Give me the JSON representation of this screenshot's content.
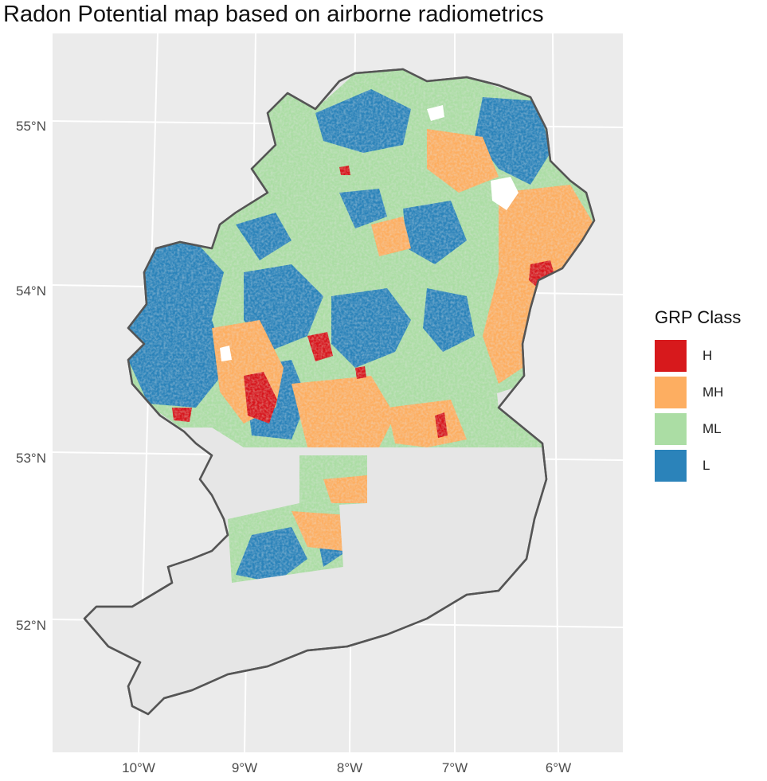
{
  "title": "Radon Potential map based on airborne radiometrics",
  "axes": {
    "y_ticks": [
      "55°N",
      "54°N",
      "53°N",
      "52°N"
    ],
    "x_ticks": [
      "10°W",
      "9°W",
      "8°W",
      "7°W",
      "6°W"
    ]
  },
  "legend": {
    "title": "GRP Class",
    "items": [
      {
        "label": "H",
        "color": "#d7191c"
      },
      {
        "label": "MH",
        "color": "#fdae61"
      },
      {
        "label": "ML",
        "color": "#abdda4"
      },
      {
        "label": "L",
        "color": "#2b83ba"
      }
    ]
  },
  "colors": {
    "panel_bg": "#ebebeb",
    "grid": "#ffffff",
    "land_unmapped": "#e6e6e6",
    "coastline": "#555555"
  }
}
